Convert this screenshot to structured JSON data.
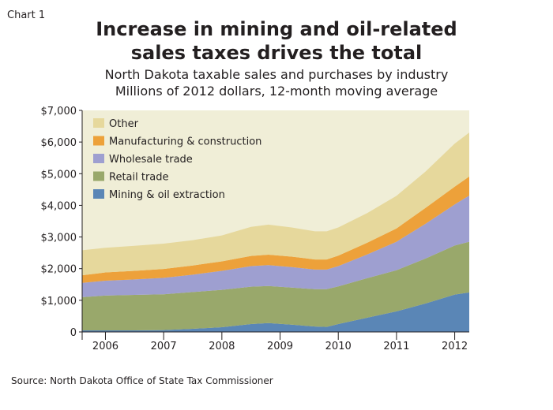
{
  "chart_label": "Chart 1",
  "chart_data": {
    "type": "area",
    "stacked": true,
    "title_lines": [
      "Increase in mining and oil-related",
      "sales taxes drives the total"
    ],
    "subtitle_lines": [
      "North Dakota taxable sales and purchases by industry",
      "Millions of 2012 dollars, 12-month moving average"
    ],
    "source": "Source: North Dakota Office of State Tax Commissioner",
    "x": [
      2005.6,
      2006.0,
      2006.5,
      2007.0,
      2007.5,
      2008.0,
      2008.5,
      2008.8,
      2009.2,
      2009.6,
      2009.8,
      2010.0,
      2010.5,
      2011.0,
      2011.5,
      2012.0,
      2012.25
    ],
    "x_range": [
      2005.6,
      2012.25
    ],
    "x_tick_labels": [
      "2006",
      "2007",
      "2008",
      "2009",
      "2010",
      "2011",
      "2012"
    ],
    "x_tick_positions": [
      2006,
      2007,
      2008,
      2009,
      2010,
      2011,
      2012
    ],
    "y_range": [
      0,
      7000
    ],
    "y_ticks": [
      0,
      1000,
      2000,
      3000,
      4000,
      5000,
      6000,
      7000
    ],
    "y_tick_labels": [
      "0",
      "$1,000",
      "$2,000",
      "$3,000",
      "$4,000",
      "$5,000",
      "$6,000",
      "$7,000"
    ],
    "series": [
      {
        "name": "Mining & oil extraction",
        "color": "#5a86b6",
        "values": [
          50,
          50,
          50,
          60,
          100,
          150,
          250,
          280,
          230,
          170,
          160,
          250,
          450,
          650,
          900,
          1180,
          1250
        ]
      },
      {
        "name": "Retail trade",
        "color": "#99a86b",
        "values": [
          1050,
          1100,
          1120,
          1130,
          1160,
          1180,
          1180,
          1170,
          1170,
          1180,
          1190,
          1190,
          1250,
          1300,
          1420,
          1550,
          1600
        ]
      },
      {
        "name": "Wholesale trade",
        "color": "#9e9fd0",
        "values": [
          450,
          470,
          490,
          520,
          550,
          600,
          650,
          660,
          650,
          620,
          620,
          640,
          750,
          900,
          1100,
          1300,
          1460
        ]
      },
      {
        "name": "Manufacturing & construction",
        "color": "#eda13a",
        "values": [
          240,
          260,
          270,
          280,
          290,
          300,
          320,
          330,
          330,
          320,
          320,
          330,
          370,
          420,
          500,
          560,
          600
        ]
      },
      {
        "name": "Other",
        "color": "#e6d89c",
        "values": [
          790,
          780,
          790,
          800,
          800,
          820,
          920,
          950,
          920,
          890,
          890,
          890,
          940,
          1030,
          1150,
          1360,
          1390
        ]
      }
    ],
    "legend_order": [
      "Other",
      "Manufacturing & construction",
      "Wholesale trade",
      "Retail trade",
      "Mining & oil extraction"
    ],
    "plot_background": "#f0eed7",
    "legend_placement": "top-left"
  }
}
